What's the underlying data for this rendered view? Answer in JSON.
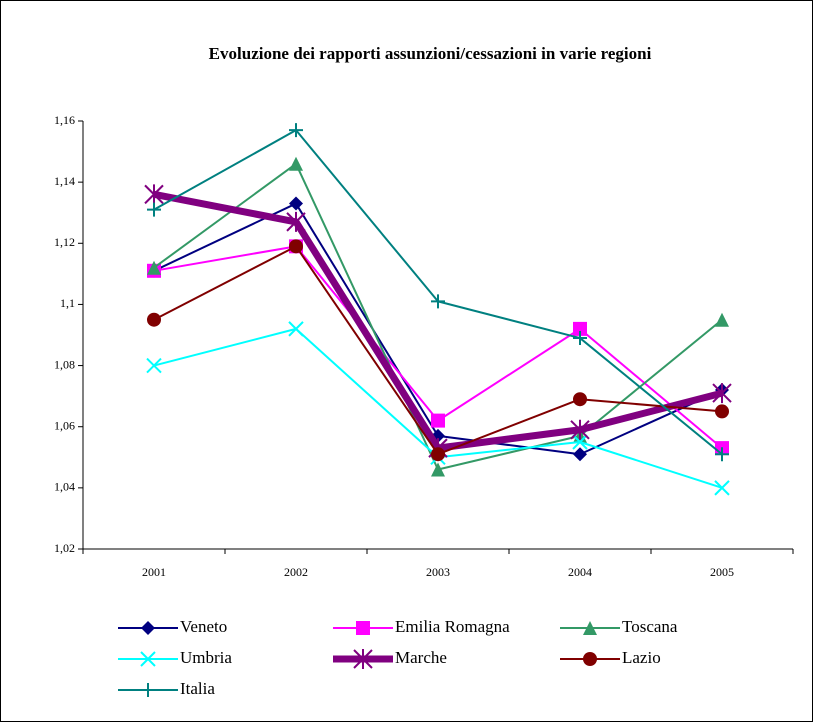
{
  "chart_data": {
    "type": "line",
    "title": "Evoluzione dei rapporti assunzioni/cessazioni in varie regioni",
    "categories": [
      "2001",
      "2002",
      "2003",
      "2004",
      "2005"
    ],
    "series": [
      {
        "name": "Veneto",
        "color": "#000080",
        "marker": "diamond",
        "width": 2,
        "values": [
          1.111,
          1.133,
          1.057,
          1.051,
          1.072
        ]
      },
      {
        "name": "Emilia Romagna",
        "color": "#ff00ff",
        "marker": "square",
        "width": 2,
        "values": [
          1.111,
          1.119,
          1.062,
          1.092,
          1.053
        ]
      },
      {
        "name": "Toscana",
        "color": "#339966",
        "marker": "triangle",
        "width": 2,
        "values": [
          1.112,
          1.146,
          1.046,
          1.057,
          1.095
        ]
      },
      {
        "name": "Umbria",
        "color": "#00ffff",
        "marker": "x",
        "width": 2,
        "values": [
          1.08,
          1.092,
          1.05,
          1.055,
          1.04
        ]
      },
      {
        "name": "Marche",
        "color": "#800080",
        "marker": "asterisk",
        "width": 7,
        "values": [
          1.136,
          1.127,
          1.053,
          1.059,
          1.071
        ]
      },
      {
        "name": "Lazio",
        "color": "#800000",
        "marker": "circle",
        "width": 2,
        "values": [
          1.095,
          1.119,
          1.051,
          1.069,
          1.065
        ]
      },
      {
        "name": "Italia",
        "color": "#008080",
        "marker": "plus",
        "width": 2,
        "values": [
          1.131,
          1.157,
          1.101,
          1.089,
          1.051
        ]
      }
    ],
    "ylim": [
      1.02,
      1.16
    ],
    "yticks": [
      {
        "value": 1.02,
        "label": "1,02"
      },
      {
        "value": 1.04,
        "label": "1,04"
      },
      {
        "value": 1.06,
        "label": "1,06"
      },
      {
        "value": 1.08,
        "label": "1,08"
      },
      {
        "value": 1.1,
        "label": "1,1"
      },
      {
        "value": 1.12,
        "label": "1,12"
      },
      {
        "value": 1.14,
        "label": "1,14"
      },
      {
        "value": 1.16,
        "label": "1,16"
      }
    ],
    "grid": false,
    "legend": "bottom"
  }
}
